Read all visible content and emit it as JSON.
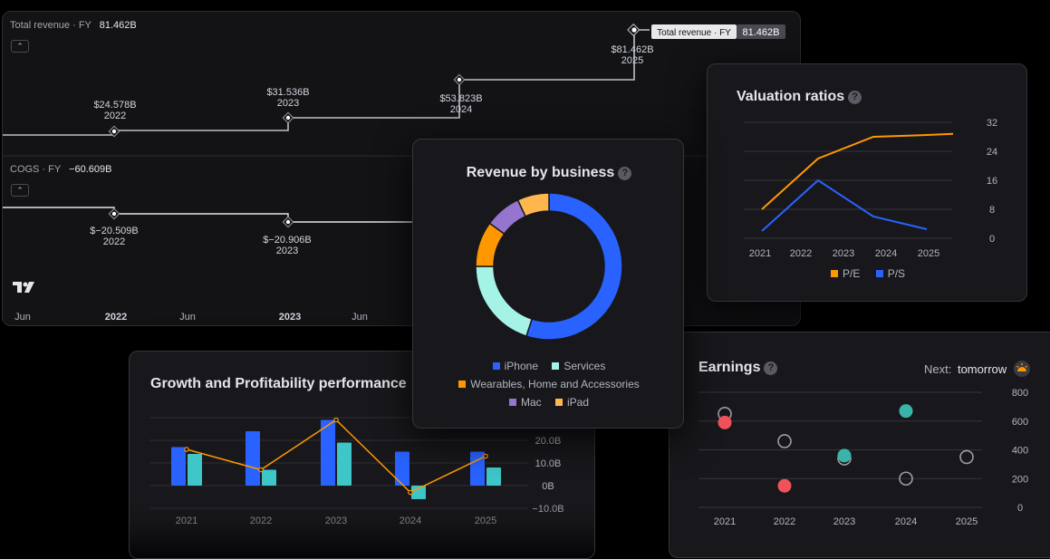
{
  "revenue_panel": {
    "label": "Total revenue · FY",
    "value": "81.462B",
    "tooltip_label": "Total revenue · FY",
    "tooltip_value": "81.462B",
    "points": [
      {
        "value": "$24.578B",
        "year": "2022"
      },
      {
        "value": "$31.536B",
        "year": "2023"
      },
      {
        "value": "$53.823B",
        "year": "2024"
      },
      {
        "value": "$81.462B",
        "year": "2025"
      }
    ]
  },
  "cogs_panel": {
    "label": "COGS · FY",
    "value": "−60.609B",
    "points": [
      {
        "value": "$−20.509B",
        "year": "2022"
      },
      {
        "value": "$−20.906B",
        "year": "2023"
      }
    ],
    "time_axis": [
      "Jun",
      "2022",
      "Jun",
      "2023",
      "Jun"
    ]
  },
  "icons": {
    "collapse": "chevron-up-icon",
    "logo": "tradingview-logo-icon",
    "help": "question-mark-icon",
    "next_earnings": "sunrise-icon"
  },
  "help_glyph": "?",
  "collapse_glyph": "⌃",
  "donut": {
    "title": "Revenue by business",
    "chart_data": {
      "type": "pie",
      "categories": [
        "iPhone",
        "Services",
        "Wearables, Home and Accessories",
        "Mac",
        "iPad"
      ],
      "values": [
        55,
        20,
        10,
        8,
        7
      ],
      "colors": [
        "#2962ff",
        "#a5f3e6",
        "#ff9800",
        "#9575cd",
        "#ffb74d"
      ]
    }
  },
  "valuation": {
    "title": "Valuation ratios",
    "chart_data": {
      "type": "line",
      "x": [
        "2021",
        "2022",
        "2023",
        "2024",
        "2025"
      ],
      "series": [
        {
          "name": "P/E",
          "color": "#ff9800",
          "values": [
            8,
            22,
            28,
            28.5,
            null
          ]
        },
        {
          "name": "P/S",
          "color": "#2962ff",
          "values": [
            2,
            16,
            6,
            2.5,
            null
          ]
        }
      ],
      "yticks": [
        "32",
        "24",
        "16",
        "8",
        "0"
      ],
      "ylim": [
        0,
        32
      ]
    }
  },
  "growth": {
    "title": "Growth and Profitability performance",
    "chart_data": {
      "type": "bar",
      "categories": [
        "2021",
        "2022",
        "2023",
        "2024",
        "2025"
      ],
      "series": [
        {
          "color": "#2962ff",
          "values": [
            17,
            24,
            29,
            15,
            15
          ]
        },
        {
          "color": "#3ec6c8",
          "values": [
            14,
            7,
            19,
            -6,
            8
          ]
        },
        {
          "color": "#ff9800",
          "values": [
            16,
            7,
            29,
            -3,
            13
          ]
        }
      ],
      "yticks": [
        "20.0B",
        "10.0B",
        "0B",
        "−10.0B"
      ],
      "ylim": [
        -10,
        30
      ]
    }
  },
  "earnings": {
    "title": "Earnings",
    "next_label": "Next:",
    "next_value": "tomorrow",
    "chart_data": {
      "type": "scatter",
      "x": [
        "2021",
        "2022",
        "2023",
        "2024",
        "2025"
      ],
      "series": [
        {
          "color": "#9c9ca4",
          "values": [
            650,
            460,
            340,
            200,
            350
          ]
        },
        {
          "color": "#f0525a",
          "values": [
            590,
            150,
            null,
            null,
            null
          ]
        },
        {
          "color": "#3ab4a8",
          "values": [
            null,
            null,
            360,
            670,
            null
          ]
        }
      ],
      "yticks": [
        "800",
        "600",
        "400",
        "200",
        "0"
      ],
      "ylim": [
        0,
        800
      ]
    }
  }
}
